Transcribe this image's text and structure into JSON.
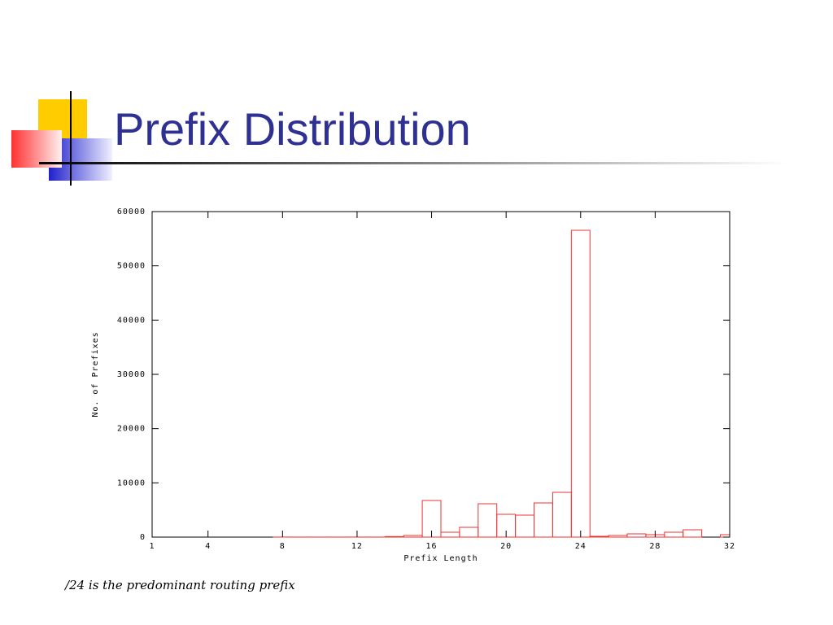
{
  "title": "Prefix Distribution",
  "caption": "/24 is the predominant routing prefix",
  "chart_data": {
    "type": "bar",
    "xlabel": "Prefix Length",
    "ylabel": "No. of Prefixes",
    "x": [
      1,
      2,
      3,
      4,
      5,
      6,
      7,
      8,
      9,
      10,
      11,
      12,
      13,
      14,
      15,
      16,
      17,
      18,
      19,
      20,
      21,
      22,
      23,
      24,
      25,
      26,
      27,
      28,
      29,
      30,
      31,
      32
    ],
    "values": [
      0,
      0,
      0,
      0,
      0,
      0,
      0,
      10,
      10,
      10,
      10,
      10,
      10,
      100,
      300,
      6750,
      900,
      1800,
      6150,
      4200,
      4050,
      6300,
      8250,
      56550,
      150,
      300,
      600,
      450,
      900,
      1350,
      0,
      450
    ],
    "color": "#ee3333",
    "xlim": [
      1,
      32
    ],
    "xticks": [
      1,
      4,
      8,
      12,
      16,
      20,
      24,
      28,
      32
    ],
    "ylim": [
      0,
      60000
    ],
    "yticks": [
      0,
      10000,
      20000,
      30000,
      40000,
      50000,
      60000
    ]
  }
}
